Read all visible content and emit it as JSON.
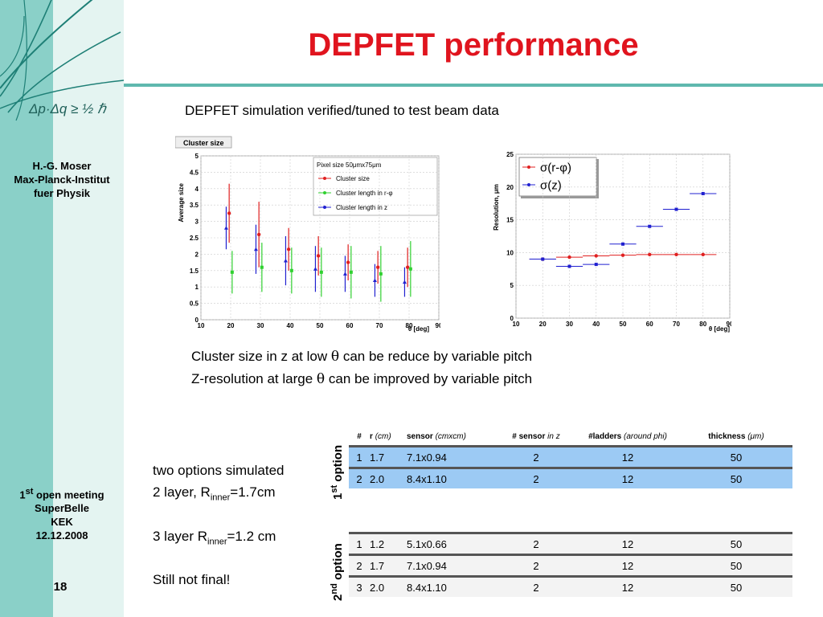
{
  "slide": {
    "title": "DEPFET performance",
    "subtitle": "DEPFET simulation verified/tuned to test beam data",
    "author": [
      "H.-G. Moser",
      "Max-Planck-Institut",
      "fuer Physik"
    ],
    "meeting": {
      "line1_num": "1",
      "line1_sup": "st",
      "line1_rest": " open meeting",
      "line2": "SuperBelle",
      "line3": "KEK",
      "line4": "12.12.2008"
    },
    "page_number": "18",
    "logo_formula": "Δp·Δq ≥ ½ ℏ",
    "note1_a": "Cluster size in z at low ",
    "note1_sym": "θ",
    "note1_b": " can be reduce by variable pitch",
    "note2_a": "Z-resolution at large ",
    "note2_sym": "θ",
    "note2_b": " can be improved by variable pitch",
    "left1": "two options simulated",
    "left2_a": "2 layer, R",
    "left2_sub": "inner",
    "left2_b": "=1.7cm",
    "left3_a": "3 layer R",
    "left3_sub": "inner",
    "left3_b": "=1.2 cm",
    "left4": "Still not final!"
  },
  "colors": {
    "title": "#e0141e",
    "sidebar": "#8ad0c8",
    "sidebar_light": "#e4f4f1",
    "table_highlight": "#9ccaf4"
  },
  "table": {
    "headers": {
      "num": "#",
      "r": "r",
      "r_unit": "(cm)",
      "sensor": "sensor",
      "sensor_unit": "(cmxcm)",
      "nsensor": "# sensor",
      "nsensor_unit": "in z",
      "ladders": "#ladders",
      "ladders_unit": "(around phi)",
      "thickness": "thickness",
      "thickness_unit": "(μm)"
    },
    "option1_label_num": "1",
    "option1_label_sup": "st",
    "option1_label_rest": " option",
    "option2_label_num": "2",
    "option2_label_sup": "nd",
    "option2_label_rest": " option",
    "option1": [
      [
        "1",
        "1.7",
        "7.1x0.94",
        "2",
        "12",
        "50"
      ],
      [
        "2",
        "2.0",
        "8.4x1.10",
        "2",
        "12",
        "50"
      ]
    ],
    "option2": [
      [
        "1",
        "1.2",
        "5.1x0.66",
        "2",
        "12",
        "50"
      ],
      [
        "2",
        "1.7",
        "7.1x0.94",
        "2",
        "12",
        "50"
      ],
      [
        "3",
        "2.0",
        "8.4x1.10",
        "2",
        "12",
        "50"
      ]
    ]
  },
  "chart_data": [
    {
      "type": "scatter",
      "title": "Cluster size",
      "xlabel": "θ [deg]",
      "ylabel": "Average size",
      "xlim": [
        10,
        90
      ],
      "ylim": [
        0,
        5
      ],
      "xticks": [
        10,
        20,
        30,
        40,
        50,
        60,
        70,
        80,
        90
      ],
      "yticks": [
        0,
        0.5,
        1,
        1.5,
        2,
        2.5,
        3,
        3.5,
        4,
        4.5,
        5
      ],
      "legend_title": "Pixel size 50μmx75μm",
      "legend_position": "top-right",
      "series": [
        {
          "name": "Cluster size",
          "color": "#e02020",
          "x": [
            19.5,
            29.5,
            39.5,
            49.5,
            59.5,
            69.5,
            79.5
          ],
          "y": [
            3.25,
            2.6,
            2.15,
            1.95,
            1.75,
            1.6,
            1.6
          ],
          "err": [
            0.9,
            1.0,
            0.65,
            0.6,
            0.55,
            0.5,
            0.6
          ]
        },
        {
          "name": "Cluster length in r-φ",
          "color": "#30d030",
          "x": [
            20.5,
            30.5,
            40.5,
            50.5,
            60.5,
            70.5,
            80.5
          ],
          "y": [
            1.45,
            1.6,
            1.5,
            1.45,
            1.45,
            1.4,
            1.55
          ],
          "err": [
            0.65,
            0.75,
            0.7,
            0.75,
            0.8,
            0.85,
            0.85
          ]
        },
        {
          "name": "Cluster length in z",
          "color": "#2020d0",
          "x": [
            18.5,
            28.5,
            38.5,
            48.5,
            58.5,
            68.5,
            78.5
          ],
          "y": [
            2.8,
            2.15,
            1.8,
            1.55,
            1.4,
            1.2,
            1.15
          ],
          "err": [
            0.65,
            0.75,
            0.75,
            0.7,
            0.55,
            0.5,
            0.45
          ]
        }
      ]
    },
    {
      "type": "scatter",
      "title": "",
      "xlabel": "θ [deg]",
      "ylabel": "Resolution, μm",
      "xlim": [
        10,
        90
      ],
      "ylim": [
        0,
        25
      ],
      "xticks": [
        10,
        20,
        30,
        40,
        50,
        60,
        70,
        80,
        90
      ],
      "yticks": [
        0,
        5,
        10,
        15,
        20,
        25
      ],
      "legend_position": "top-left",
      "series": [
        {
          "name": "σ(r-φ)",
          "color": "#e02020",
          "x": [
            20,
            30,
            40,
            50,
            60,
            70,
            80
          ],
          "y": [
            9.0,
            9.3,
            9.5,
            9.6,
            9.7,
            9.7,
            9.7
          ]
        },
        {
          "name": "σ(z)",
          "color": "#2020d0",
          "x": [
            20,
            30,
            40,
            50,
            60,
            70,
            80
          ],
          "y": [
            9.0,
            7.9,
            8.2,
            11.3,
            14.0,
            16.6,
            19.0
          ]
        }
      ]
    }
  ]
}
